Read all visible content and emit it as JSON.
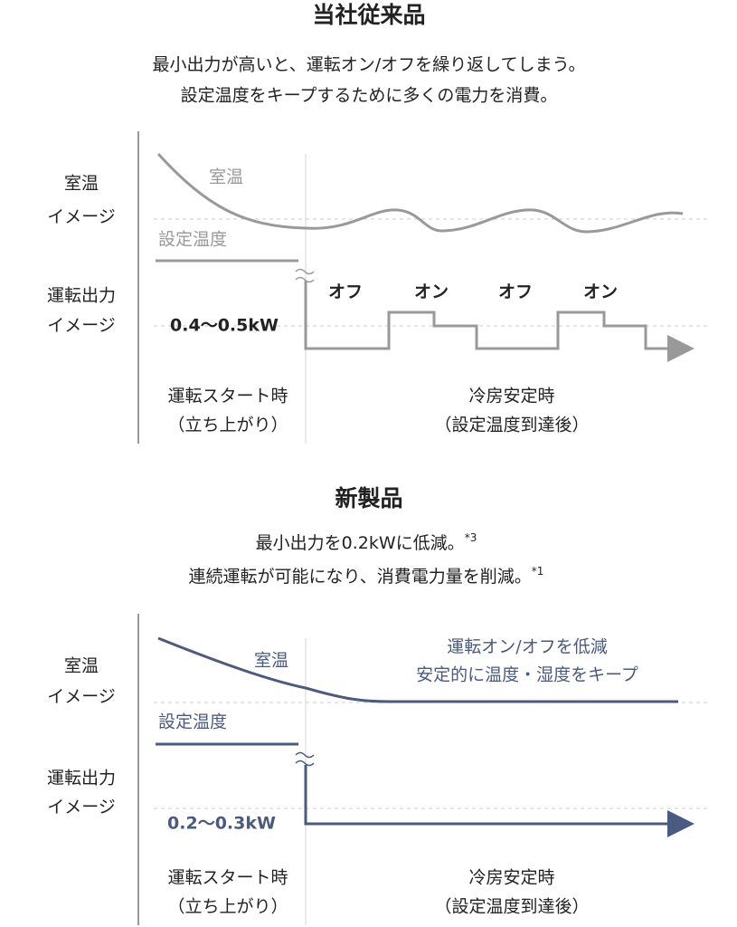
{
  "sections": [
    {
      "title": "当社従来品",
      "subtitle": [
        "最小出力が高いと、運転オン/オフを繰り返してしまう。",
        "設定温度をキープするために多くの電力を消費。"
      ],
      "note": [],
      "room_axis": [
        "室温",
        "イメージ"
      ],
      "output_axis": [
        "運転出力",
        "イメージ"
      ],
      "curve_label": "室温",
      "setpoint_label": "設定温度",
      "output_label": "0.4〜0.5kW",
      "states": [
        "オフ",
        "オン",
        "オフ",
        "オン"
      ],
      "phases": [
        [
          "運転スタート時",
          "（立ち上がり）"
        ],
        [
          "冷房安定時",
          "（設定温度到達後）"
        ]
      ]
    },
    {
      "title": "新製品",
      "subtitle": [
        "最小出力を0.2kWに低減。",
        "連続運転が可能になり、消費電力量を削減。"
      ],
      "note": [
        "*3",
        "*1"
      ],
      "room_axis": [
        "室温",
        "イメージ"
      ],
      "output_axis": [
        "運転出力",
        "イメージ"
      ],
      "curve_label": "室温",
      "setpoint_label": "設定温度",
      "output_label": "0.2〜0.3kW",
      "annotation": [
        "運転オン/オフを低減",
        "安定的に温度・湿度をキープ"
      ],
      "phases": [
        [
          "運転スタート時",
          "（立ち上がり）"
        ],
        [
          "冷房安定時",
          "（設定温度到達後）"
        ]
      ]
    }
  ]
}
